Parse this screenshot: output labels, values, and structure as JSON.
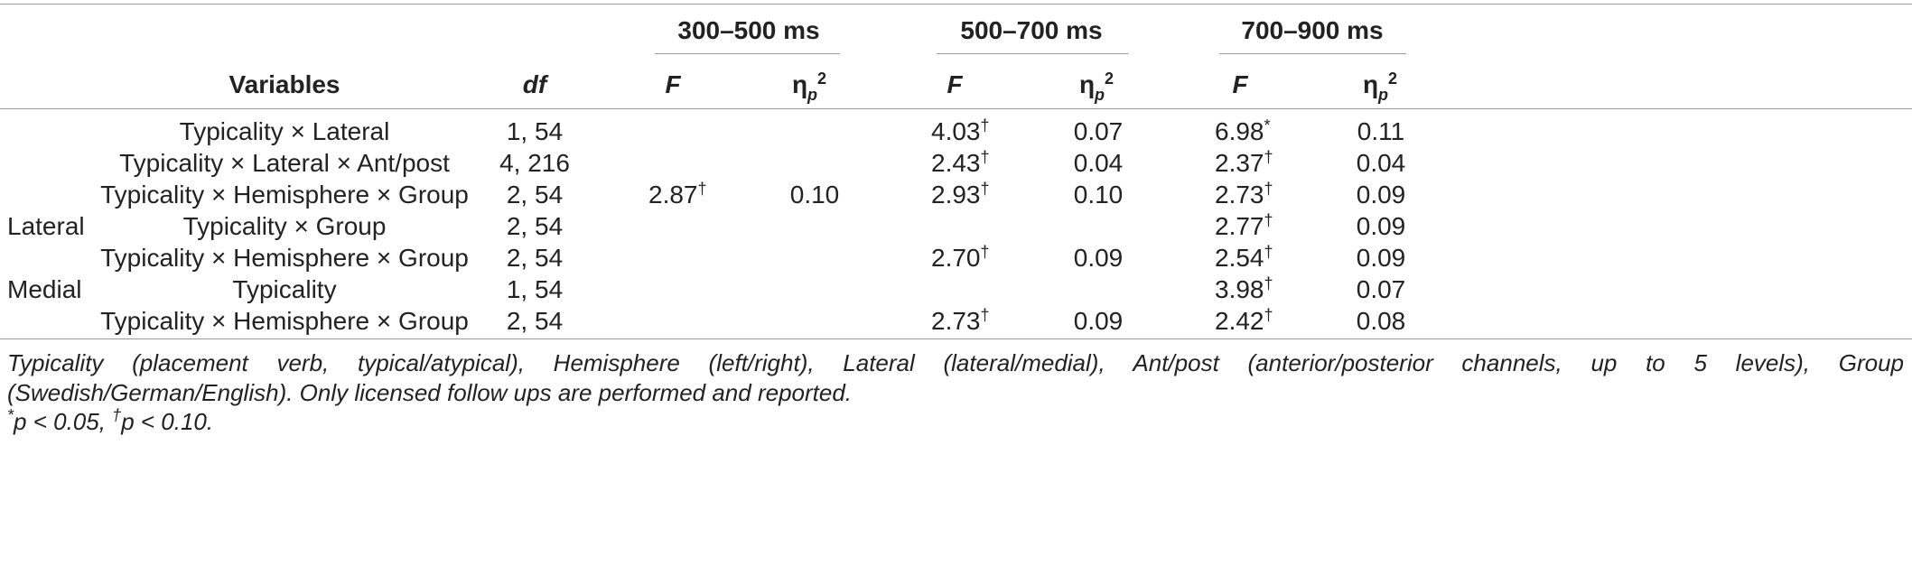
{
  "header": {
    "variables": "Variables",
    "df": "df",
    "windows": [
      "300–500 ms",
      "500–700 ms",
      "700–900 ms"
    ],
    "f": "F",
    "eta": "η",
    "eta_sub": "p",
    "eta_sup": "2"
  },
  "rows": [
    {
      "region": "",
      "variable": "Typicality × Lateral",
      "df": "1, 54",
      "w1_f": "",
      "w1_f_sup": "",
      "w1_eta": "",
      "w2_f": "4.03",
      "w2_f_sup": "†",
      "w2_eta": "0.07",
      "w3_f": "6.98",
      "w3_f_sup": "*",
      "w3_eta": "0.11"
    },
    {
      "region": "",
      "variable": "Typicality × Lateral × Ant/post",
      "df": "4, 216",
      "w1_f": "",
      "w1_f_sup": "",
      "w1_eta": "",
      "w2_f": "2.43",
      "w2_f_sup": "†",
      "w2_eta": "0.04",
      "w3_f": "2.37",
      "w3_f_sup": "†",
      "w3_eta": "0.04"
    },
    {
      "region": "",
      "variable": "Typicality × Hemisphere × Group",
      "df": "2, 54",
      "w1_f": "2.87",
      "w1_f_sup": "†",
      "w1_eta": "0.10",
      "w2_f": "2.93",
      "w2_f_sup": "†",
      "w2_eta": "0.10",
      "w3_f": "2.73",
      "w3_f_sup": "†",
      "w3_eta": "0.09"
    },
    {
      "region": "Lateral",
      "variable": "Typicality × Group",
      "df": "2, 54",
      "w1_f": "",
      "w1_f_sup": "",
      "w1_eta": "",
      "w2_f": "",
      "w2_f_sup": "",
      "w2_eta": "",
      "w3_f": "2.77",
      "w3_f_sup": "†",
      "w3_eta": "0.09"
    },
    {
      "region": "",
      "variable": "Typicality × Hemisphere × Group",
      "df": "2, 54",
      "w1_f": "",
      "w1_f_sup": "",
      "w1_eta": "",
      "w2_f": "2.70",
      "w2_f_sup": "†",
      "w2_eta": "0.09",
      "w3_f": "2.54",
      "w3_f_sup": "†",
      "w3_eta": "0.09"
    },
    {
      "region": "Medial",
      "variable": "Typicality",
      "df": "1, 54",
      "w1_f": "",
      "w1_f_sup": "",
      "w1_eta": "",
      "w2_f": "",
      "w2_f_sup": "",
      "w2_eta": "",
      "w3_f": "3.98",
      "w3_f_sup": "†",
      "w3_eta": "0.07"
    },
    {
      "region": "",
      "variable": "Typicality × Hemisphere × Group",
      "df": "2, 54",
      "w1_f": "",
      "w1_f_sup": "",
      "w1_eta": "",
      "w2_f": "2.73",
      "w2_f_sup": "†",
      "w2_eta": "0.09",
      "w3_f": "2.42",
      "w3_f_sup": "†",
      "w3_eta": "0.08"
    }
  ],
  "footnote": {
    "line1": "Typicality (placement verb, typical/atypical), Hemisphere (left/right), Lateral (lateral/medial), Ant/post (anterior/posterior channels, up to 5 levels), Group",
    "line2": "(Swedish/German/English). Only licensed follow ups are performed and reported.",
    "sig_star": "*",
    "sig_star_text": "p < 0.05, ",
    "sig_dagger": "†",
    "sig_dagger_text": "p < 0.10."
  }
}
